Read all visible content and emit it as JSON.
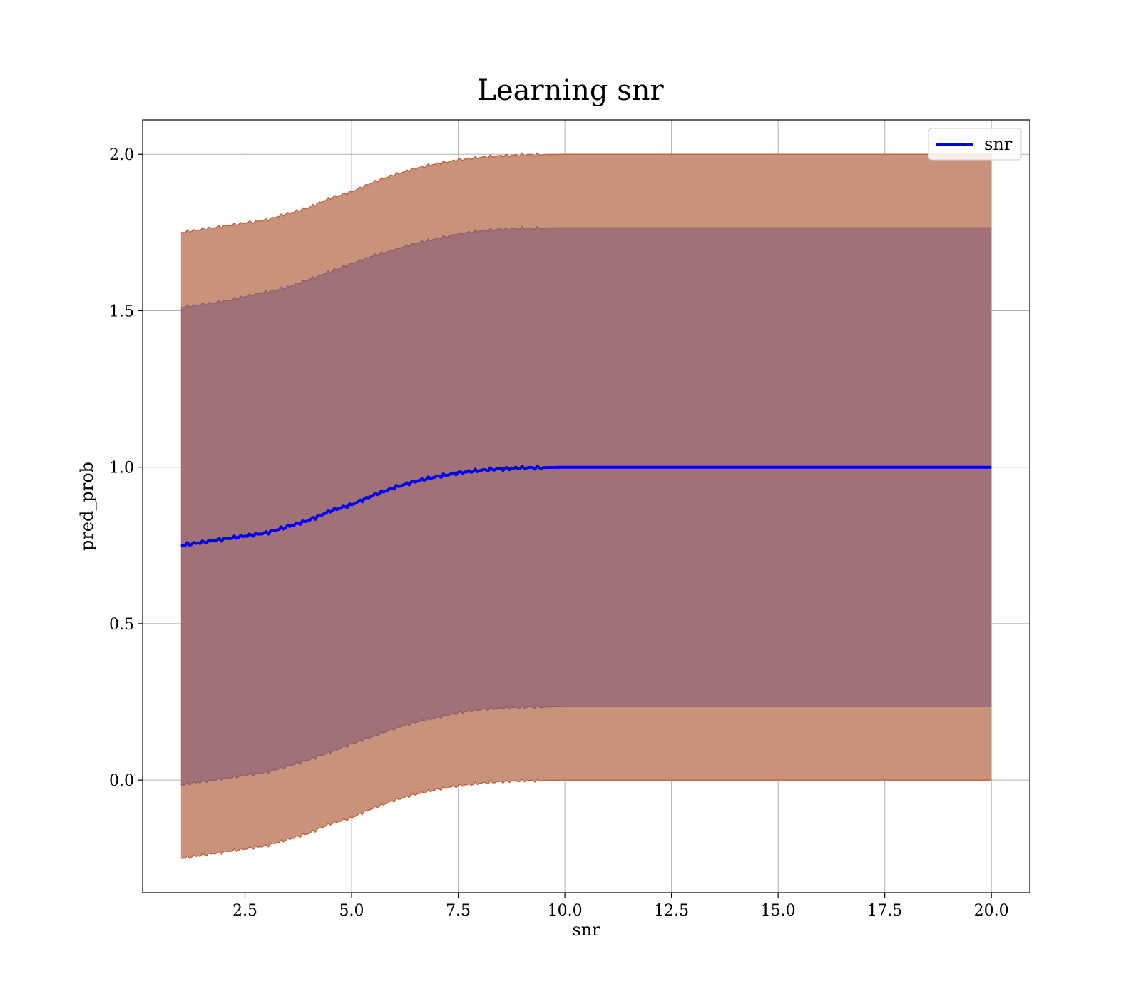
{
  "chart_data": {
    "type": "line",
    "title": "Learning snr",
    "xlabel": "snr",
    "ylabel": "pred_prob",
    "xlim": [
      0.1,
      20.9
    ],
    "ylim": [
      -0.36,
      2.11
    ],
    "xticks": [
      2.5,
      5.0,
      7.5,
      10.0,
      12.5,
      15.0,
      17.5,
      20.0
    ],
    "xtick_labels": [
      "2.5",
      "5.0",
      "7.5",
      "10.0",
      "12.5",
      "15.0",
      "17.5",
      "20.0"
    ],
    "yticks": [
      0.0,
      0.5,
      1.0,
      1.5,
      2.0
    ],
    "ytick_labels": [
      "0.0",
      "0.5",
      "1.0",
      "1.5",
      "2.0"
    ],
    "grid": true,
    "legend": {
      "position": "top-right",
      "entries": [
        "snr"
      ]
    },
    "series": [
      {
        "name": "snr",
        "color": "#0000ee",
        "x": [
          1.0,
          1.5,
          2.0,
          2.5,
          3.0,
          3.5,
          4.0,
          4.5,
          5.0,
          5.5,
          6.0,
          6.5,
          7.0,
          7.5,
          8.0,
          8.5,
          9.0,
          9.5,
          10.0,
          10.5,
          11.0,
          12.0,
          13.0,
          14.0,
          15.0,
          16.0,
          17.0,
          18.0,
          19.0,
          20.0
        ],
        "y": [
          0.75,
          0.76,
          0.77,
          0.78,
          0.79,
          0.81,
          0.83,
          0.86,
          0.88,
          0.91,
          0.935,
          0.955,
          0.97,
          0.982,
          0.99,
          0.995,
          0.998,
          0.999,
          1.0,
          1.0,
          1.0,
          1.0,
          1.0,
          1.0,
          1.0,
          1.0,
          1.0,
          1.0,
          1.0,
          1.0
        ]
      }
    ],
    "bands": [
      {
        "role": "outer",
        "color": "#c8937a",
        "edge_color": "#c0603e",
        "x": [
          1.0,
          1.5,
          2.0,
          2.5,
          3.0,
          3.5,
          4.0,
          4.5,
          5.0,
          5.5,
          6.0,
          6.5,
          7.0,
          7.5,
          8.0,
          8.5,
          9.0,
          9.5,
          10.0,
          10.5,
          11.0,
          12.0,
          13.0,
          14.0,
          15.0,
          16.0,
          17.0,
          18.0,
          19.0,
          20.0
        ],
        "upper": [
          1.75,
          1.76,
          1.77,
          1.78,
          1.79,
          1.81,
          1.83,
          1.86,
          1.88,
          1.91,
          1.935,
          1.955,
          1.97,
          1.982,
          1.99,
          1.995,
          1.998,
          1.999,
          2.0,
          2.0,
          2.0,
          2.0,
          2.0,
          2.0,
          2.0,
          2.0,
          2.0,
          2.0,
          2.0,
          2.0
        ],
        "lower": [
          -0.25,
          -0.24,
          -0.23,
          -0.22,
          -0.21,
          -0.19,
          -0.17,
          -0.14,
          -0.12,
          -0.09,
          -0.065,
          -0.045,
          -0.03,
          -0.018,
          -0.01,
          -0.005,
          -0.002,
          -0.001,
          0.0,
          0.0,
          0.0,
          0.0,
          0.0,
          0.0,
          0.0,
          0.0,
          0.0,
          0.0,
          0.0,
          0.0
        ]
      },
      {
        "role": "inner",
        "color": "#a27178",
        "edge_color": "#8a5f72",
        "x": [
          1.0,
          1.5,
          2.0,
          2.5,
          3.0,
          3.5,
          4.0,
          4.5,
          5.0,
          5.5,
          6.0,
          6.5,
          7.0,
          7.5,
          8.0,
          8.5,
          9.0,
          9.5,
          10.0,
          10.5,
          11.0,
          12.0,
          13.0,
          14.0,
          15.0,
          16.0,
          17.0,
          18.0,
          19.0,
          20.0
        ],
        "upper": [
          1.51,
          1.52,
          1.53,
          1.545,
          1.56,
          1.575,
          1.6,
          1.625,
          1.65,
          1.675,
          1.695,
          1.715,
          1.73,
          1.745,
          1.755,
          1.76,
          1.763,
          1.764,
          1.765,
          1.765,
          1.765,
          1.765,
          1.765,
          1.765,
          1.765,
          1.765,
          1.765,
          1.765,
          1.765,
          1.765
        ],
        "lower": [
          -0.015,
          -0.005,
          0.005,
          0.015,
          0.025,
          0.045,
          0.065,
          0.09,
          0.115,
          0.14,
          0.165,
          0.185,
          0.2,
          0.215,
          0.225,
          0.23,
          0.233,
          0.234,
          0.235,
          0.235,
          0.235,
          0.235,
          0.235,
          0.235,
          0.235,
          0.235,
          0.235,
          0.235,
          0.235,
          0.235
        ]
      }
    ]
  }
}
